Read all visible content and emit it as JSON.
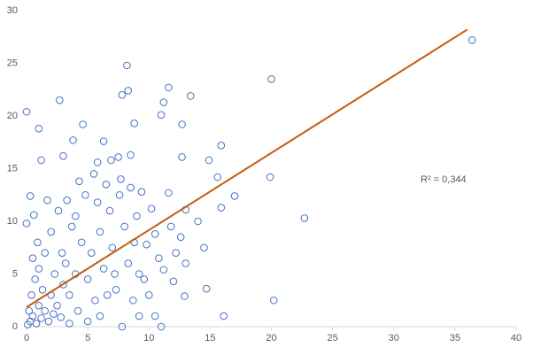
{
  "chart_data": {
    "type": "scatter",
    "x": [
      36.4,
      0,
      1,
      1.2,
      2.7,
      3.8,
      4.6,
      3,
      5.8,
      6.3,
      8.2,
      8.3,
      7.8,
      8.8,
      8.5,
      7.5,
      11.6,
      11.2,
      11,
      13.4,
      12.7,
      12.7,
      20,
      15.9,
      14.9,
      15.6,
      17,
      19.9,
      22.7,
      20.2,
      16.1,
      14.7,
      14.5,
      15.9,
      14,
      13,
      12.6,
      13,
      12.9,
      11.6,
      11.2,
      10.5,
      11,
      9.2,
      7.8,
      9.2,
      0.3,
      0.6,
      0,
      0.1,
      0.3,
      0.5,
      0.2,
      0.8,
      1,
      1.2,
      0.4,
      1.5,
      0.7,
      2,
      1.8,
      2.3,
      2.5,
      3,
      2.8,
      3.2,
      3.5,
      4,
      4.2,
      4.5,
      3.7,
      5,
      5.3,
      5.6,
      6,
      6.3,
      6.8,
      7,
      7.3,
      7.6,
      8,
      8.3,
      8.7,
      9,
      9.4,
      9.8,
      10.2,
      10.5,
      1.5,
      2,
      2.6,
      1,
      0.5,
      3.3,
      4.8,
      5.8,
      6.5,
      7.7,
      8.5,
      9.6,
      10,
      6,
      5,
      3.5,
      2.2,
      1.3,
      0.9,
      2.9,
      4,
      6.6,
      7.2,
      8.8,
      10.8,
      11.8,
      12.2,
      12,
      5.5,
      4.3,
      6.9,
      1.7
    ],
    "values": [
      27.2,
      20.4,
      18.8,
      15.8,
      21.5,
      17.7,
      19.2,
      16.2,
      15.6,
      17.6,
      24.8,
      22.4,
      22,
      19.3,
      16.3,
      16.1,
      22.7,
      21.3,
      20.1,
      21.9,
      19.2,
      16.1,
      23.5,
      17.2,
      15.8,
      14.2,
      12.4,
      14.2,
      10.3,
      2.5,
      1,
      3.6,
      7.5,
      11.3,
      10,
      11.1,
      8.5,
      6,
      2.9,
      12.7,
      5.4,
      1,
      0,
      1,
      0,
      5,
      12.4,
      10.6,
      9.8,
      0.2,
      0.5,
      1,
      1.5,
      0.3,
      2,
      0.8,
      3,
      1.5,
      4.5,
      3,
      0.5,
      5,
      2,
      4,
      0.9,
      6,
      3,
      5,
      1.5,
      8,
      9.5,
      4.5,
      7,
      2.5,
      9,
      5.5,
      11,
      7.5,
      3.5,
      12.5,
      9.5,
      6,
      2.5,
      10.5,
      12.8,
      7.8,
      11.2,
      8.8,
      7,
      9,
      11,
      5.5,
      6.5,
      12,
      12.5,
      11.8,
      13.5,
      14,
      13.2,
      4.5,
      3,
      1,
      0.5,
      0.3,
      1.2,
      3.5,
      8,
      7,
      10.5,
      3,
      5,
      8,
      6.5,
      9.5,
      7,
      4.3,
      14.5,
      13.8,
      15.8,
      12
    ],
    "color": "#4472c4",
    "trendline": {
      "x": [
        0,
        36
      ],
      "values": [
        1.85,
        28.2
      ],
      "color": "#c55a11"
    },
    "annotation": "R² = 0,344",
    "xlim": [
      0,
      40
    ],
    "xticks": [
      0,
      5,
      10,
      15,
      20,
      25,
      30,
      35,
      40
    ],
    "ylim": [
      0,
      30
    ],
    "yticks": [
      0,
      5,
      10,
      15,
      20,
      25,
      30
    ],
    "grid": false
  }
}
